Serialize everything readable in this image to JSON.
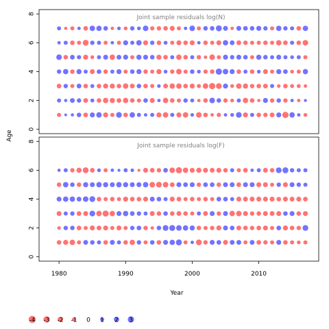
{
  "chart_data": {
    "type": "scatter",
    "xlabel": "Year",
    "ylabel": "Age",
    "xlim": [
      1977,
      2019
    ],
    "x_ticks": [
      1980,
      1990,
      2000,
      2010
    ],
    "y_ticks": [
      0,
      2,
      4,
      6,
      8
    ],
    "colors": {
      "positive": "#0000ff",
      "negative": "#ff0000",
      "alpha": 0.55
    },
    "years": [
      1980,
      1981,
      1982,
      1983,
      1984,
      1985,
      1986,
      1987,
      1988,
      1989,
      1990,
      1991,
      1992,
      1993,
      1994,
      1995,
      1996,
      1997,
      1998,
      1999,
      2000,
      2001,
      2002,
      2003,
      2004,
      2005,
      2006,
      2007,
      2008,
      2009,
      2010,
      2011,
      2012,
      2013,
      2014,
      2015,
      2016,
      2017
    ],
    "panels": [
      {
        "title": "Joint sample residuals log(N)",
        "ylim": [
          -0.3,
          8.3
        ],
        "ages": [
          1,
          2,
          3,
          4,
          5,
          6,
          7
        ],
        "residuals": {
          "1": [
            -1.0,
            0.3,
            0.5,
            1.3,
            -1.4,
            1.7,
            2.1,
            -1.7,
            -1.0,
            2.3,
            -1.3,
            2.1,
            1.0,
            0.6,
            1.0,
            -1.7,
            -2.1,
            1.0,
            -1.7,
            -2.1,
            0.7,
            -2.2,
            -1.3,
            -0.6,
            -1.1,
            0.6,
            0.8,
            2.3,
            -1.7,
            1.0,
            -1.3,
            -1.2,
            -1.5,
            1.7,
            -2.9,
            2.1,
            0.6,
            -0.8
          ],
          "2": [
            1.0,
            0.5,
            1.5,
            1.2,
            -1.5,
            0.9,
            -1.3,
            -2.0,
            -1.8,
            -1.4,
            -2.0,
            -1.3,
            -1.0,
            1.3,
            -1.6,
            0.6,
            -2.0,
            -1.3,
            -1.0,
            1.2,
            0.9,
            -0.6,
            -1.3,
            2.2,
            1.3,
            -1.2,
            -0.8,
            1.0,
            -2.0,
            -1.3,
            -0.5,
            1.7,
            -1.2,
            1.2,
            -1.2,
            0.6,
            -0.6,
            0.4
          ],
          "3": [
            -1.4,
            1.2,
            -1.0,
            1.5,
            -1.3,
            0.9,
            -1.3,
            -1.7,
            -1.7,
            -1.3,
            -2.0,
            -1.5,
            1.3,
            -1.3,
            -1.0,
            0.7,
            -1.5,
            -2.0,
            -2.0,
            -1.3,
            -1.7,
            -1.0,
            -2.1,
            -2.9,
            -2.4,
            1.7,
            -0.8,
            -2.0,
            -1.8,
            -1.2,
            -1.3,
            -1.4,
            1.0,
            -0.7,
            -1.3,
            -0.9,
            -0.9,
            -0.6
          ],
          "4": [
            1.2,
            2.0,
            -1.3,
            1.8,
            1.0,
            -1.6,
            1.3,
            -1.2,
            1.0,
            1.7,
            -1.0,
            1.3,
            1.7,
            -1.2,
            -1.0,
            -1.7,
            0.8,
            -1.2,
            -2.1,
            -1.0,
            1.3,
            0.8,
            -1.1,
            -1.3,
            2.9,
            2.2,
            1.7,
            -1.3,
            1.0,
            -1.3,
            0.8,
            -1.6,
            -1.0,
            1.7,
            1.4,
            -0.8,
            -1.0,
            1.9
          ],
          "5": [
            2.2,
            -1.3,
            1.4,
            1.1,
            -1.7,
            -0.8,
            1.0,
            1.6,
            -2.0,
            1.5,
            1.7,
            -1.0,
            1.8,
            1.6,
            1.3,
            -1.7,
            -1.3,
            1.0,
            -2.0,
            -1.3,
            1.0,
            -1.2,
            -0.6,
            -2.2,
            -1.0,
            1.7,
            1.2,
            1.6,
            1.3,
            -1.0,
            1.8,
            1.3,
            1.0,
            1.6,
            1.0,
            0.8,
            1.0,
            -1.0
          ],
          "6": [
            0.6,
            1.0,
            -1.3,
            -1.0,
            -2.5,
            1.2,
            1.0,
            -1.0,
            0.6,
            -1.0,
            1.7,
            1.0,
            2.0,
            -1.6,
            1.2,
            -1.3,
            0.9,
            -1.0,
            -1.6,
            -1.3,
            -1.6,
            0.6,
            -1.3,
            -1.0,
            -1.6,
            2.0,
            1.5,
            -1.5,
            -1.3,
            -1.0,
            -1.0,
            -1.3,
            -1.0,
            -2.0,
            -1.4,
            1.0,
            -1.3,
            -2.2
          ],
          "7": [
            1.0,
            -0.5,
            -1.0,
            0.6,
            -1.3,
            2.1,
            2.0,
            1.4,
            -0.6,
            0.7,
            -0.8,
            1.2,
            0.8,
            2.2,
            -1.1,
            -1.2,
            -1.3,
            -1.6,
            -1.0,
            0.6,
            2.2,
            -1.0,
            1.3,
            1.3,
            2.6,
            1.6,
            -0.6,
            1.6,
            1.4,
            1.3,
            1.7,
            1.2,
            -1.0,
            2.0,
            1.2,
            1.0,
            -1.4,
            2.0
          ]
        }
      },
      {
        "title": "Joint sample residuals log(F)",
        "ylim": [
          -0.3,
          8.3
        ],
        "ages": [
          1,
          2,
          3,
          4,
          5,
          6
        ],
        "residuals": {
          "1": [
            -1.3,
            -1.7,
            -2.1,
            -1.0,
            1.5,
            1.3,
            1.0,
            -1.3,
            1.6,
            1.0,
            -1.3,
            -2.0,
            1.2,
            -1.0,
            1.3,
            -1.3,
            1.6,
            2.0,
            2.6,
            -1.0,
            0.6,
            -2.4,
            -1.2,
            1.6,
            1.4,
            -1.6,
            1.5,
            1.5,
            -1.0,
            1.5,
            -1.4,
            -1.2,
            -1.0,
            1.6,
            -1.3,
            -1.0,
            -0.8,
            -1.0
          ],
          "2": [
            -0.7,
            1.2,
            1.3,
            -1.4,
            -1.0,
            -1.7,
            -1.5,
            -1.6,
            -1.0,
            -1.6,
            -1.0,
            1.2,
            1.4,
            -1.2,
            -0.6,
            1.3,
            2.4,
            2.6,
            2.2,
            2.0,
            1.8,
            -1.3,
            -1.0,
            -1.2,
            -1.7,
            1.6,
            1.4,
            -1.5,
            -1.3,
            -1.2,
            -1.4,
            -1.6,
            -1.0,
            1.4,
            -1.7,
            -1.3,
            -1.2,
            2.4
          ],
          "3": [
            -1.6,
            1.0,
            1.2,
            -1.4,
            -1.6,
            2.4,
            -2.1,
            -2.8,
            -2.0,
            1.6,
            2.0,
            1.4,
            1.2,
            1.0,
            -1.6,
            -1.3,
            1.3,
            -1.3,
            -1.5,
            -1.3,
            -1.0,
            1.0,
            -1.5,
            1.6,
            -1.2,
            1.6,
            -2.1,
            -2.0,
            -1.6,
            -1.2,
            -1.3,
            -1.6,
            -1.5,
            -1.6,
            1.3,
            1.6,
            -1.3,
            -1.6
          ],
          "4": [
            1.6,
            2.0,
            2.0,
            1.5,
            2.2,
            2.4,
            -1.3,
            -1.0,
            -1.3,
            -1.0,
            -1.7,
            -1.4,
            -1.3,
            -1.6,
            1.6,
            1.4,
            1.0,
            -1.6,
            -1.4,
            -1.0,
            -1.3,
            -1.0,
            -1.3,
            -1.0,
            1.4,
            1.4,
            1.0,
            -1.6,
            -1.6,
            -1.6,
            -1.6,
            -1.6,
            -1.6,
            -1.3,
            -1.6,
            -1.5,
            -1.6,
            -1.4
          ],
          "5": [
            -1.3,
            2.0,
            1.3,
            -1.3,
            1.8,
            1.6,
            2.0,
            1.8,
            1.6,
            2.0,
            1.8,
            1.6,
            1.6,
            2.0,
            -2.2,
            -2.3,
            -2.2,
            -1.5,
            1.6,
            1.4,
            1.6,
            -1.2,
            1.4,
            1.4,
            -1.3,
            1.6,
            1.6,
            -1.4,
            1.6,
            1.6,
            -1.6,
            -1.6,
            -1.0,
            1.2,
            -1.6,
            1.6,
            1.2,
            1.0
          ],
          "6": [
            0.5,
            1.0,
            -1.2,
            -1.8,
            -2.5,
            -1.4,
            0.8,
            -1.0,
            0.6,
            0.4,
            1.0,
            0.7,
            -0.4,
            -1.6,
            -1.4,
            -1.2,
            1.4,
            -2.2,
            -2.8,
            -2.0,
            -1.6,
            -1.8,
            -1.6,
            -1.5,
            -1.6,
            -1.3,
            1.0,
            -1.0,
            -1.4,
            0.6,
            1.0,
            -1.5,
            -1.3,
            2.4,
            2.6,
            1.2,
            1.0,
            1.0
          ]
        }
      }
    ],
    "legend": {
      "placement": "bottom-left",
      "values": [
        -4,
        -3,
        -2,
        -1,
        0,
        1,
        2,
        3
      ],
      "labels": [
        "-4",
        "-3",
        "-2",
        "-1",
        "0",
        "1",
        "2",
        "3"
      ]
    }
  }
}
